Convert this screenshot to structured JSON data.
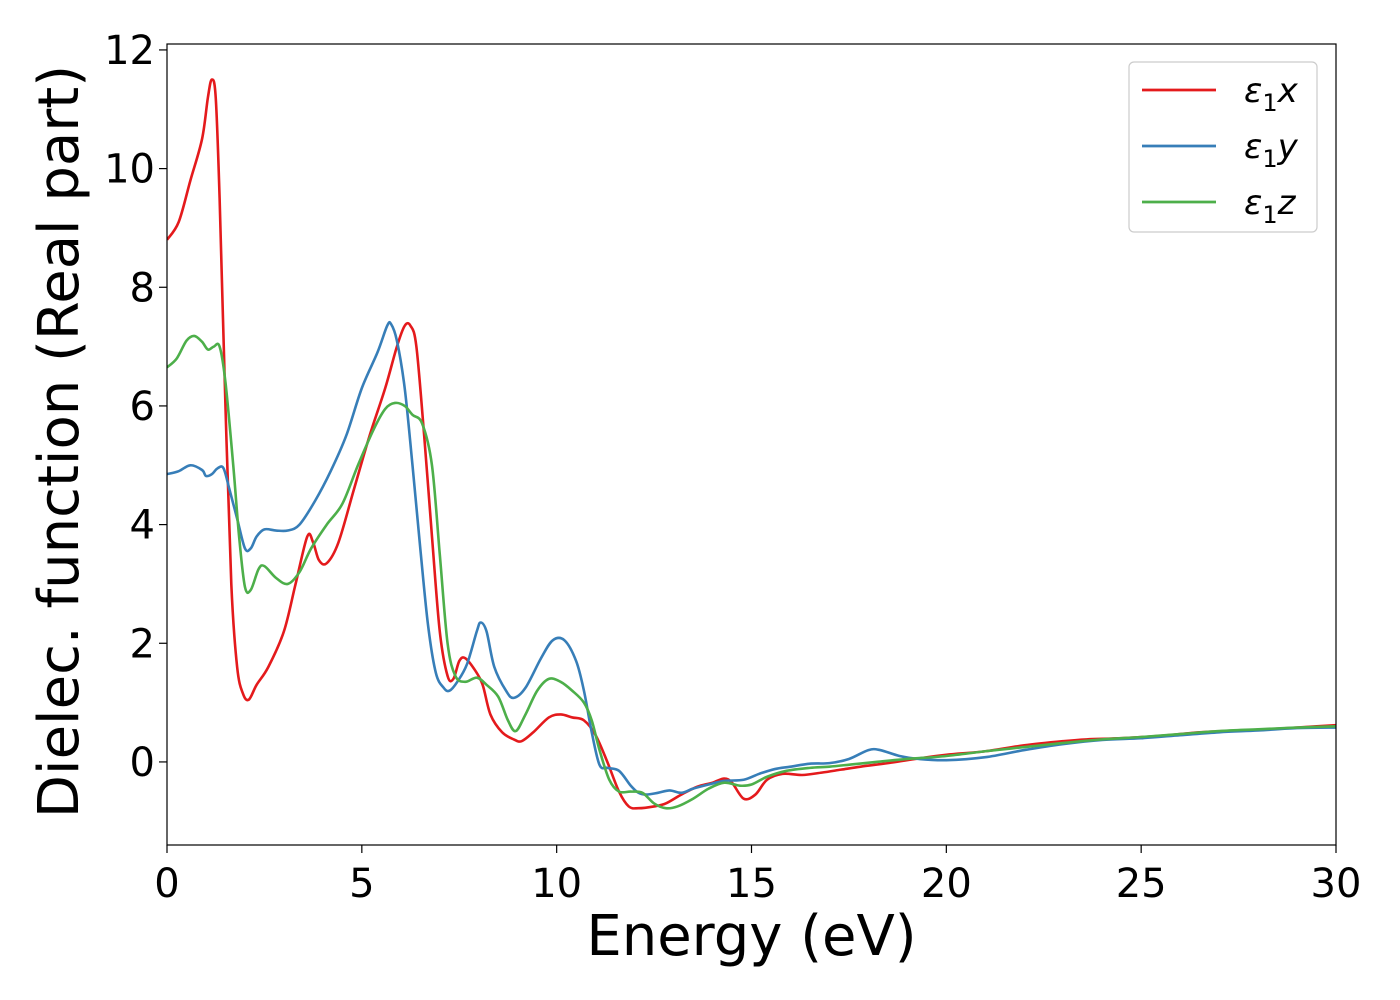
{
  "chart_data": {
    "type": "line",
    "xlabel": "Energy (eV)",
    "ylabel": "Dielec. function (Real part)",
    "xlim": [
      0,
      30
    ],
    "ylim": [
      -1.4,
      12.1
    ],
    "xticks": [
      0,
      5,
      10,
      15,
      20,
      25,
      30
    ],
    "yticks": [
      0,
      2,
      4,
      6,
      8,
      10,
      12
    ],
    "grid": false,
    "legend_position": "top-right",
    "series": [
      {
        "name": "ε1x",
        "legend": {
          "sym": "ε",
          "sub": "1",
          "var": "x"
        },
        "color": "#e41a1c",
        "points": [
          [
            0,
            8.8
          ],
          [
            0.3,
            9.1
          ],
          [
            0.6,
            9.8
          ],
          [
            0.9,
            10.5
          ],
          [
            1.05,
            11.2
          ],
          [
            1.15,
            11.5
          ],
          [
            1.25,
            11.2
          ],
          [
            1.35,
            9.5
          ],
          [
            1.5,
            6.0
          ],
          [
            1.65,
            3.0
          ],
          [
            1.8,
            1.6
          ],
          [
            1.95,
            1.15
          ],
          [
            2.1,
            1.05
          ],
          [
            2.3,
            1.3
          ],
          [
            2.6,
            1.6
          ],
          [
            3.0,
            2.2
          ],
          [
            3.3,
            3.0
          ],
          [
            3.6,
            3.8
          ],
          [
            3.75,
            3.7
          ],
          [
            3.9,
            3.4
          ],
          [
            4.1,
            3.35
          ],
          [
            4.4,
            3.7
          ],
          [
            4.8,
            4.6
          ],
          [
            5.2,
            5.5
          ],
          [
            5.6,
            6.3
          ],
          [
            5.9,
            7.0
          ],
          [
            6.1,
            7.35
          ],
          [
            6.25,
            7.35
          ],
          [
            6.4,
            7.0
          ],
          [
            6.6,
            5.5
          ],
          [
            6.8,
            3.8
          ],
          [
            7.0,
            2.2
          ],
          [
            7.2,
            1.45
          ],
          [
            7.35,
            1.4
          ],
          [
            7.5,
            1.7
          ],
          [
            7.65,
            1.75
          ],
          [
            7.9,
            1.55
          ],
          [
            8.1,
            1.3
          ],
          [
            8.3,
            0.8
          ],
          [
            8.6,
            0.5
          ],
          [
            8.9,
            0.38
          ],
          [
            9.1,
            0.35
          ],
          [
            9.4,
            0.5
          ],
          [
            9.8,
            0.75
          ],
          [
            10.1,
            0.8
          ],
          [
            10.4,
            0.75
          ],
          [
            10.7,
            0.7
          ],
          [
            11.0,
            0.45
          ],
          [
            11.3,
            0.0
          ],
          [
            11.6,
            -0.5
          ],
          [
            11.85,
            -0.75
          ],
          [
            12.1,
            -0.78
          ],
          [
            12.5,
            -0.75
          ],
          [
            12.8,
            -0.7
          ],
          [
            13.2,
            -0.55
          ],
          [
            13.6,
            -0.42
          ],
          [
            14.0,
            -0.35
          ],
          [
            14.3,
            -0.28
          ],
          [
            14.5,
            -0.35
          ],
          [
            14.8,
            -0.62
          ],
          [
            15.1,
            -0.55
          ],
          [
            15.4,
            -0.3
          ],
          [
            15.8,
            -0.2
          ],
          [
            16.3,
            -0.22
          ],
          [
            16.8,
            -0.18
          ],
          [
            17.3,
            -0.13
          ],
          [
            17.8,
            -0.08
          ],
          [
            18.5,
            -0.02
          ],
          [
            19.2,
            0.05
          ],
          [
            20.0,
            0.12
          ],
          [
            21.0,
            0.18
          ],
          [
            22.0,
            0.28
          ],
          [
            23.0,
            0.35
          ],
          [
            23.6,
            0.38
          ],
          [
            24.5,
            0.4
          ],
          [
            25.5,
            0.44
          ],
          [
            26.5,
            0.5
          ],
          [
            27.5,
            0.53
          ],
          [
            28.5,
            0.56
          ],
          [
            29.5,
            0.6
          ],
          [
            30,
            0.62
          ]
        ]
      },
      {
        "name": "ε1y",
        "legend": {
          "sym": "ε",
          "sub": "1",
          "var": "y"
        },
        "color": "#377eb8",
        "points": [
          [
            0,
            4.85
          ],
          [
            0.3,
            4.9
          ],
          [
            0.6,
            5.0
          ],
          [
            0.9,
            4.92
          ],
          [
            1.0,
            4.82
          ],
          [
            1.15,
            4.85
          ],
          [
            1.3,
            4.95
          ],
          [
            1.45,
            4.95
          ],
          [
            1.6,
            4.6
          ],
          [
            1.8,
            4.1
          ],
          [
            2.0,
            3.6
          ],
          [
            2.15,
            3.6
          ],
          [
            2.3,
            3.8
          ],
          [
            2.5,
            3.92
          ],
          [
            2.8,
            3.9
          ],
          [
            3.1,
            3.9
          ],
          [
            3.4,
            4.0
          ],
          [
            3.8,
            4.4
          ],
          [
            4.2,
            4.9
          ],
          [
            4.6,
            5.5
          ],
          [
            5.0,
            6.3
          ],
          [
            5.4,
            6.9
          ],
          [
            5.65,
            7.35
          ],
          [
            5.75,
            7.38
          ],
          [
            5.9,
            7.1
          ],
          [
            6.1,
            6.3
          ],
          [
            6.3,
            5.0
          ],
          [
            6.5,
            3.6
          ],
          [
            6.7,
            2.3
          ],
          [
            6.9,
            1.5
          ],
          [
            7.1,
            1.25
          ],
          [
            7.25,
            1.2
          ],
          [
            7.45,
            1.35
          ],
          [
            7.7,
            1.65
          ],
          [
            7.95,
            2.2
          ],
          [
            8.05,
            2.35
          ],
          [
            8.2,
            2.2
          ],
          [
            8.4,
            1.6
          ],
          [
            8.7,
            1.2
          ],
          [
            8.9,
            1.08
          ],
          [
            9.2,
            1.25
          ],
          [
            9.6,
            1.75
          ],
          [
            9.9,
            2.05
          ],
          [
            10.2,
            2.05
          ],
          [
            10.5,
            1.7
          ],
          [
            10.7,
            1.2
          ],
          [
            10.9,
            0.5
          ],
          [
            11.1,
            -0.05
          ],
          [
            11.3,
            -0.1
          ],
          [
            11.6,
            -0.15
          ],
          [
            11.9,
            -0.4
          ],
          [
            12.1,
            -0.52
          ],
          [
            12.3,
            -0.55
          ],
          [
            12.6,
            -0.52
          ],
          [
            12.9,
            -0.48
          ],
          [
            13.2,
            -0.52
          ],
          [
            13.5,
            -0.45
          ],
          [
            13.9,
            -0.38
          ],
          [
            14.3,
            -0.32
          ],
          [
            14.8,
            -0.3
          ],
          [
            15.2,
            -0.2
          ],
          [
            15.6,
            -0.12
          ],
          [
            16.0,
            -0.08
          ],
          [
            16.5,
            -0.03
          ],
          [
            17.0,
            -0.02
          ],
          [
            17.5,
            0.05
          ],
          [
            18.0,
            0.2
          ],
          [
            18.3,
            0.2
          ],
          [
            18.8,
            0.1
          ],
          [
            19.3,
            0.05
          ],
          [
            20.0,
            0.03
          ],
          [
            21.0,
            0.08
          ],
          [
            22.0,
            0.2
          ],
          [
            23.0,
            0.3
          ],
          [
            24.0,
            0.37
          ],
          [
            25.0,
            0.4
          ],
          [
            26.0,
            0.45
          ],
          [
            27.0,
            0.5
          ],
          [
            28.0,
            0.53
          ],
          [
            29.0,
            0.57
          ],
          [
            30,
            0.58
          ]
        ]
      },
      {
        "name": "ε1z",
        "legend": {
          "sym": "ε",
          "sub": "1",
          "var": "z"
        },
        "color": "#4daf4a",
        "points": [
          [
            0,
            6.65
          ],
          [
            0.25,
            6.8
          ],
          [
            0.5,
            7.1
          ],
          [
            0.7,
            7.18
          ],
          [
            0.9,
            7.08
          ],
          [
            1.05,
            6.95
          ],
          [
            1.2,
            7.0
          ],
          [
            1.35,
            7.0
          ],
          [
            1.5,
            6.4
          ],
          [
            1.7,
            5.0
          ],
          [
            1.85,
            3.8
          ],
          [
            2.0,
            2.95
          ],
          [
            2.15,
            2.9
          ],
          [
            2.35,
            3.25
          ],
          [
            2.5,
            3.3
          ],
          [
            2.8,
            3.1
          ],
          [
            3.1,
            3.0
          ],
          [
            3.4,
            3.2
          ],
          [
            3.7,
            3.6
          ],
          [
            4.1,
            4.0
          ],
          [
            4.5,
            4.35
          ],
          [
            4.9,
            5.0
          ],
          [
            5.3,
            5.6
          ],
          [
            5.6,
            5.95
          ],
          [
            5.85,
            6.05
          ],
          [
            6.1,
            6.0
          ],
          [
            6.3,
            5.85
          ],
          [
            6.55,
            5.7
          ],
          [
            6.8,
            5.0
          ],
          [
            7.0,
            3.5
          ],
          [
            7.2,
            2.0
          ],
          [
            7.4,
            1.45
          ],
          [
            7.65,
            1.35
          ],
          [
            7.95,
            1.42
          ],
          [
            8.2,
            1.3
          ],
          [
            8.5,
            1.1
          ],
          [
            8.75,
            0.7
          ],
          [
            8.95,
            0.52
          ],
          [
            9.2,
            0.8
          ],
          [
            9.5,
            1.2
          ],
          [
            9.8,
            1.4
          ],
          [
            10.1,
            1.35
          ],
          [
            10.4,
            1.2
          ],
          [
            10.7,
            1.0
          ],
          [
            10.9,
            0.7
          ],
          [
            11.1,
            0.2
          ],
          [
            11.35,
            -0.3
          ],
          [
            11.6,
            -0.5
          ],
          [
            11.9,
            -0.5
          ],
          [
            12.2,
            -0.52
          ],
          [
            12.5,
            -0.7
          ],
          [
            12.8,
            -0.78
          ],
          [
            13.1,
            -0.75
          ],
          [
            13.5,
            -0.62
          ],
          [
            13.9,
            -0.45
          ],
          [
            14.3,
            -0.35
          ],
          [
            14.7,
            -0.4
          ],
          [
            15.0,
            -0.38
          ],
          [
            15.4,
            -0.25
          ],
          [
            15.9,
            -0.15
          ],
          [
            16.5,
            -0.1
          ],
          [
            17.0,
            -0.08
          ],
          [
            17.6,
            -0.04
          ],
          [
            18.2,
            0.0
          ],
          [
            19.0,
            0.05
          ],
          [
            20.0,
            0.1
          ],
          [
            21.0,
            0.18
          ],
          [
            22.0,
            0.25
          ],
          [
            23.0,
            0.32
          ],
          [
            24.0,
            0.38
          ],
          [
            25.0,
            0.42
          ],
          [
            26.0,
            0.47
          ],
          [
            27.0,
            0.52
          ],
          [
            28.0,
            0.55
          ],
          [
            29.0,
            0.58
          ],
          [
            30,
            0.6
          ]
        ]
      }
    ]
  }
}
